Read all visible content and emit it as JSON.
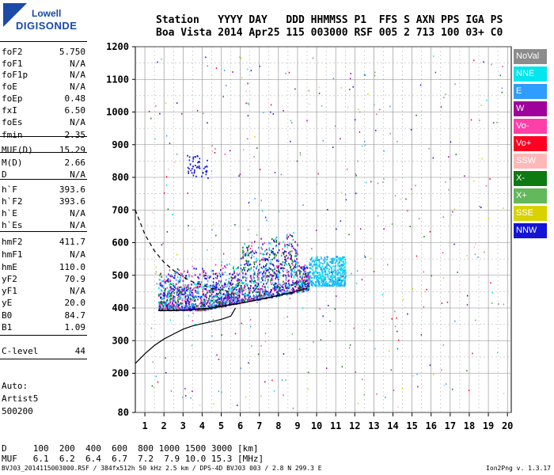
{
  "logo": {
    "brand_top": "Lowell",
    "brand_bottom": "DIGISONDE"
  },
  "header": {
    "line1": "Station   YYYY DAY   DDD HHMMSS P1  FFS S AXN PPS IGA PS",
    "line2": "Boa Vista 2014 Apr25 115 003000 RSF 005 2 713 100 03+ C0"
  },
  "stats": [
    {
      "label": "foF2",
      "value": "5.750"
    },
    {
      "label": "foF1",
      "value": "N/A"
    },
    {
      "label": "foF1p",
      "value": "N/A"
    },
    {
      "label": "foE",
      "value": "N/A"
    },
    {
      "label": "foEp",
      "value": "0.48"
    },
    {
      "label": "fxI",
      "value": "6.50"
    },
    {
      "label": "foEs",
      "value": "N/A"
    },
    {
      "label": "fmin",
      "value": "2.35"
    },
    {
      "label": "MUF(D)",
      "value": "15.29"
    },
    {
      "label": "M(D)",
      "value": "2.66"
    },
    {
      "label": "D",
      "value": "N/A"
    },
    {
      "label": "h`F",
      "value": "393.6"
    },
    {
      "label": "h`F2",
      "value": "393.6"
    },
    {
      "label": "h`E",
      "value": "N/A"
    },
    {
      "label": "h`Es",
      "value": "N/A"
    },
    {
      "label": "hmF2",
      "value": "411.7"
    },
    {
      "label": "hmF1",
      "value": "N/A"
    },
    {
      "label": "hmE",
      "value": "110.0"
    },
    {
      "label": "yF2",
      "value": "70.9"
    },
    {
      "label": "yF1",
      "value": "N/A"
    },
    {
      "label": "yE",
      "value": "20.0"
    },
    {
      "label": "B0",
      "value": "84.7"
    },
    {
      "label": "B1",
      "value": "1.09"
    },
    {
      "label": "C-level",
      "value": "44"
    }
  ],
  "auto": [
    "Auto:",
    "Artist5",
    "500200"
  ],
  "legend": [
    {
      "label": "NoVal",
      "bg": "#8c8c8c",
      "fg": "#ffffff"
    },
    {
      "label": "NNE",
      "bg": "#00e5ee",
      "fg": "#ffffff"
    },
    {
      "label": "E",
      "bg": "#2f9cff",
      "fg": "#ffffff"
    },
    {
      "label": "W",
      "bg": "#a0009b",
      "fg": "#ffffff"
    },
    {
      "label": "Vo-",
      "bg": "#ff3fa8",
      "fg": "#ffffff"
    },
    {
      "label": "Vo+",
      "bg": "#ff0022",
      "fg": "#ffffff"
    },
    {
      "label": "SSW",
      "bg": "#ffb8b8",
      "fg": "#ffffff"
    },
    {
      "label": "X-",
      "bg": "#0e7a12",
      "fg": "#ffffff"
    },
    {
      "label": "X+",
      "bg": "#62b85a",
      "fg": "#ffffff"
    },
    {
      "label": "SSE",
      "bg": "#d7d200",
      "fg": "#ffffff"
    },
    {
      "label": "NNW",
      "bg": "#1414d6",
      "fg": "#ffffff"
    }
  ],
  "dmuf": {
    "line1": "D     100  200  400  600  800 1000 1500 3000 [km]",
    "line2": "MUF   6.1  6.2  6.4  6.7  7.2  7.9 10.0 15.3 [MHz]"
  },
  "footer": {
    "left": "BVJ03_2014115003000.RSF / 384fx512h 50 kHz 2.5 km / DPS-4D BVJ03 003 / 2.8 N 299.3 E",
    "right": "Ion2Png v. 1.3.17"
  },
  "chart_data": {
    "type": "scatter",
    "x_ticks": [
      1,
      2,
      3,
      4,
      5,
      6,
      7,
      8,
      9,
      10,
      11,
      12,
      13,
      14,
      15,
      16,
      17,
      18,
      19,
      20
    ],
    "y_ticks": [
      80,
      200,
      300,
      400,
      500,
      600,
      700,
      800,
      900,
      1000,
      1100,
      1200
    ],
    "xlim": [
      0.5,
      20.2
    ],
    "ylim": [
      80,
      1200
    ],
    "grid": true,
    "curves": {
      "profile": {
        "x": [
          0.5,
          1,
          1.5,
          2,
          2.5,
          3,
          3.5,
          4,
          4.5,
          5,
          5.5,
          5.75
        ],
        "y": [
          230,
          260,
          285,
          305,
          320,
          335,
          345,
          352,
          358,
          365,
          375,
          400
        ]
      },
      "dashed_trace": {
        "x": [
          0.5,
          1,
          1.5,
          2,
          2.5,
          3,
          3.5,
          4,
          4.5,
          5,
          5.5
        ],
        "y": [
          700,
          625,
          575,
          540,
          515,
          495,
          480,
          470,
          460,
          455,
          450
        ]
      },
      "o_trace": {
        "x": [
          1.7,
          2.5,
          3.5,
          4.5,
          5.5,
          6.5,
          7.5,
          8.5,
          9.5
        ],
        "y": [
          392,
          392,
          395,
          400,
          410,
          420,
          432,
          445,
          460
        ]
      }
    }
  }
}
